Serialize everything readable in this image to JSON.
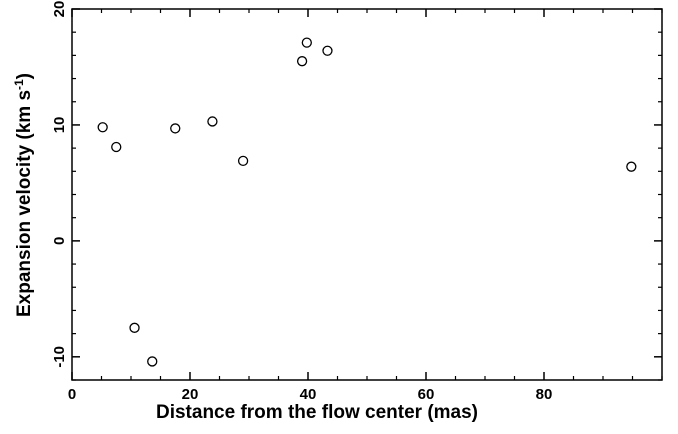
{
  "chart_data": {
    "type": "scatter",
    "title": "",
    "xlabel": "Distance from the flow center (mas)",
    "ylabel": {
      "main": "Expansion velocity (km s",
      "superscript": "-1",
      "close": ")"
    },
    "xlim": [
      0,
      100
    ],
    "ylim": [
      -12,
      20
    ],
    "x_ticks": [
      0,
      20,
      40,
      60,
      80
    ],
    "x_tick_labels": [
      "0",
      "20",
      "40",
      "60",
      "80"
    ],
    "y_ticks": [
      -10,
      0,
      10,
      20
    ],
    "y_tick_labels": [
      "-10",
      "0",
      "10",
      "20"
    ],
    "grid": false,
    "marker": "open-circle",
    "colors": {
      "axis": "#000000",
      "marker_stroke": "#000000",
      "marker_fill": "#ffffff"
    },
    "points": [
      {
        "x": 5.2,
        "y": 9.8
      },
      {
        "x": 7.5,
        "y": 8.1
      },
      {
        "x": 10.6,
        "y": -7.5
      },
      {
        "x": 13.6,
        "y": -10.4
      },
      {
        "x": 17.5,
        "y": 9.7
      },
      {
        "x": 23.8,
        "y": 10.3
      },
      {
        "x": 29.0,
        "y": 6.9
      },
      {
        "x": 39.0,
        "y": 15.5
      },
      {
        "x": 39.8,
        "y": 17.1
      },
      {
        "x": 43.3,
        "y": 16.4
      },
      {
        "x": 94.8,
        "y": 6.4
      }
    ]
  }
}
